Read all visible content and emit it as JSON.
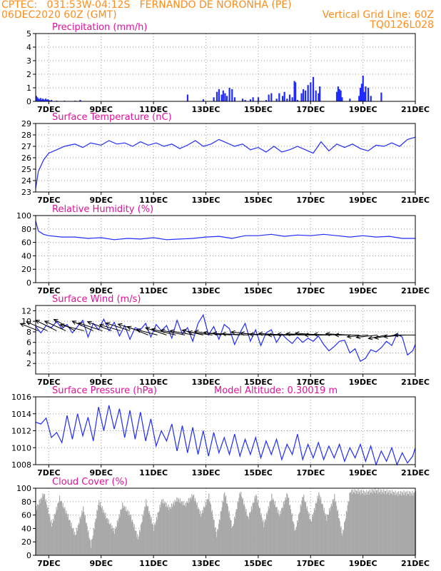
{
  "header": {
    "line1_left": "CPTEC:   031:53W-04:12S   FERNANDO DE NORONHA (PE)",
    "line2_left": "06DEC2020 60Z (GMT)",
    "line2_right": "Vertical Grid Line: 60Z",
    "line3_right": "TQ0126L028"
  },
  "colors": {
    "header": "#ff8c1a",
    "title": "#e0119a",
    "series": "#1f2bff",
    "cloud": "#a9a9a9",
    "grid": "#9a9a9a"
  },
  "chart_data": [
    {
      "type": "bar",
      "title": "Precipitation (mm/h)",
      "x_range_days": [
        6.5,
        21.0
      ],
      "ylim": [
        0,
        5
      ],
      "yticks": [
        "0",
        "1",
        "2",
        "3",
        "4",
        "5"
      ],
      "xticks": [
        "7DEC",
        "9DEC",
        "11DEC",
        "13DEC",
        "15DEC",
        "17DEC",
        "19DEC",
        "21DEC"
      ],
      "x": [
        6.52,
        6.56,
        6.6,
        6.64,
        6.68,
        6.72,
        6.76,
        6.8,
        6.84,
        6.88,
        6.92,
        6.96,
        7.0,
        7.05,
        7.1,
        7.3,
        7.6,
        8.0,
        8.2,
        12.3,
        12.9,
        13.3,
        13.42,
        13.5,
        13.6,
        13.66,
        13.73,
        13.8,
        13.9,
        14.0,
        14.1,
        14.4,
        14.5,
        14.7,
        14.8,
        15.0,
        15.3,
        15.4,
        15.5,
        15.7,
        15.8,
        15.93,
        16.0,
        16.1,
        16.2,
        16.3,
        16.38,
        16.42,
        16.5,
        16.65,
        16.72,
        16.8,
        16.9,
        17.0,
        17.1,
        17.2,
        17.3,
        17.35,
        18.0,
        18.05,
        18.1,
        18.15,
        18.2,
        18.5,
        18.85,
        18.9,
        18.95,
        19.0,
        19.05,
        19.1,
        19.2,
        19.3,
        19.7
      ],
      "values": [
        0.4,
        0.3,
        0.2,
        0.15,
        0.25,
        0.1,
        0.2,
        0.15,
        0.1,
        0.2,
        0.1,
        0.15,
        0.1,
        0.05,
        0.1,
        0.05,
        0.05,
        0.05,
        0.1,
        0.5,
        0.15,
        0.3,
        0.7,
        0.9,
        0.5,
        0.8,
        0.6,
        0.4,
        1.0,
        0.9,
        0.3,
        0.2,
        0.1,
        0.15,
        0.3,
        0.3,
        0.1,
        0.5,
        0.6,
        0.2,
        0.6,
        0.4,
        0.7,
        0.2,
        0.5,
        0.3,
        1.5,
        1.4,
        0.1,
        0.6,
        0.9,
        0.8,
        1.2,
        1.4,
        1.8,
        0.8,
        0.6,
        1.1,
        0.7,
        1.1,
        0.9,
        0.8,
        0.3,
        0.2,
        0.4,
        1.0,
        1.3,
        1.9,
        0.7,
        1.1,
        1.0,
        0.4,
        0.65
      ]
    },
    {
      "type": "line",
      "title": "Surface Temperature (nC)",
      "x_range_days": [
        6.5,
        21.0
      ],
      "ylim": [
        23,
        29
      ],
      "yticks": [
        "23",
        "24",
        "25",
        "26",
        "27",
        "28",
        "29"
      ],
      "xticks": [
        "7DEC",
        "9DEC",
        "11DEC",
        "13DEC",
        "15DEC",
        "17DEC",
        "19DEC",
        "21DEC"
      ],
      "x": [
        6.5,
        6.6,
        6.8,
        7.0,
        7.3,
        7.6,
        8.0,
        8.3,
        8.6,
        9.0,
        9.3,
        9.6,
        9.9,
        10.2,
        10.5,
        10.8,
        11.1,
        11.4,
        11.7,
        12.0,
        12.3,
        12.6,
        12.9,
        13.2,
        13.5,
        13.8,
        14.1,
        14.4,
        14.7,
        15.0,
        15.3,
        15.6,
        15.9,
        16.2,
        16.5,
        16.8,
        17.1,
        17.4,
        17.7,
        18.0,
        18.3,
        18.6,
        18.9,
        19.2,
        19.5,
        19.8,
        20.1,
        20.4,
        20.7,
        21.0
      ],
      "values": [
        23.3,
        24.8,
        25.8,
        26.4,
        26.7,
        27.0,
        27.2,
        26.9,
        27.3,
        27.1,
        27.5,
        27.2,
        27.3,
        27.0,
        27.4,
        27.1,
        27.3,
        27.0,
        27.2,
        26.8,
        27.1,
        27.5,
        27.0,
        27.2,
        27.6,
        27.3,
        27.0,
        27.2,
        26.7,
        26.9,
        26.5,
        27.0,
        26.5,
        26.7,
        27.0,
        26.7,
        26.4,
        27.4,
        26.6,
        27.2,
        26.9,
        27.2,
        26.8,
        26.6,
        27.1,
        27.0,
        27.3,
        27.0,
        27.6,
        27.8
      ]
    },
    {
      "type": "line",
      "title": "Relative Humidity (%)",
      "x_range_days": [
        6.5,
        21.0
      ],
      "ylim": [
        0,
        100
      ],
      "yticks": [
        "0",
        "20",
        "40",
        "60",
        "80",
        "100"
      ],
      "xticks": [
        "7DEC",
        "9DEC",
        "11DEC",
        "13DEC",
        "15DEC",
        "17DEC",
        "19DEC",
        "21DEC"
      ],
      "x": [
        6.5,
        6.6,
        6.8,
        7.0,
        7.5,
        8.0,
        8.5,
        9.0,
        9.5,
        10.0,
        10.5,
        11.0,
        11.5,
        12.0,
        12.5,
        13.0,
        13.5,
        14.0,
        14.5,
        15.0,
        15.5,
        16.0,
        16.5,
        17.0,
        17.5,
        18.0,
        18.5,
        19.0,
        19.5,
        20.0,
        20.5,
        21.0
      ],
      "values": [
        92,
        77,
        72,
        70,
        68,
        68,
        66,
        67,
        64,
        66,
        65,
        67,
        64,
        65,
        66,
        68,
        69,
        66,
        70,
        70,
        72,
        69,
        71,
        70,
        72,
        70,
        68,
        70,
        68,
        69,
        66,
        66
      ]
    },
    {
      "type": "line",
      "title": "Surface Wind (m/s)",
      "x_range_days": [
        6.5,
        21.0
      ],
      "ylim": [
        0,
        13
      ],
      "yticks": [
        "2",
        "4",
        "6",
        "8",
        "10",
        "12"
      ],
      "xticks": [
        "7DEC",
        "9DEC",
        "11DEC",
        "13DEC",
        "15DEC",
        "17DEC",
        "19DEC",
        "21DEC"
      ],
      "x": [
        6.5,
        6.7,
        6.9,
        7.1,
        7.3,
        7.5,
        7.7,
        7.9,
        8.1,
        8.3,
        8.5,
        8.7,
        8.9,
        9.1,
        9.3,
        9.5,
        9.7,
        9.9,
        10.1,
        10.3,
        10.5,
        10.7,
        10.9,
        11.1,
        11.3,
        11.5,
        11.7,
        11.9,
        12.1,
        12.3,
        12.5,
        12.7,
        12.9,
        13.1,
        13.3,
        13.5,
        13.7,
        13.9,
        14.1,
        14.3,
        14.5,
        14.7,
        14.9,
        15.1,
        15.3,
        15.5,
        15.7,
        15.9,
        16.1,
        16.3,
        16.5,
        16.7,
        16.9,
        17.1,
        17.3,
        17.5,
        17.7,
        17.9,
        18.1,
        18.3,
        18.5,
        18.7,
        18.9,
        19.1,
        19.3,
        19.5,
        19.7,
        19.9,
        20.1,
        20.3,
        20.5,
        20.7,
        20.9,
        21.0
      ],
      "values": [
        9.0,
        7.8,
        9.2,
        8.8,
        10.0,
        8.6,
        9.4,
        7.8,
        9.0,
        10.2,
        7.0,
        9.6,
        8.4,
        10.4,
        8.2,
        9.8,
        7.2,
        9.2,
        6.6,
        8.8,
        8.4,
        9.6,
        7.0,
        9.4,
        8.2,
        9.2,
        6.8,
        10.2,
        7.6,
        8.8,
        6.2,
        9.6,
        11.2,
        7.4,
        9.0,
        6.6,
        9.4,
        8.6,
        5.6,
        7.8,
        9.6,
        6.2,
        8.4,
        5.4,
        7.8,
        8.4,
        6.0,
        7.6,
        6.6,
        5.8,
        7.0,
        6.0,
        6.8,
        6.2,
        7.2,
        5.6,
        4.4,
        5.2,
        6.2,
        6.4,
        4.0,
        4.8,
        2.4,
        3.0,
        4.6,
        4.2,
        5.0,
        6.2,
        5.4,
        7.6,
        7.0,
        3.6,
        4.4,
        5.6
      ],
      "vectors_x": [
        6.6,
        6.95,
        7.3,
        7.65,
        8.0,
        8.35,
        8.7,
        9.05,
        9.4,
        9.75,
        10.1,
        10.45,
        10.8,
        11.15,
        11.5,
        11.85,
        12.2,
        12.55,
        12.9,
        13.25,
        13.6,
        13.95,
        14.3,
        14.65,
        15.0,
        15.35,
        15.7,
        16.05,
        16.4,
        16.75,
        17.1,
        17.45,
        17.8,
        18.15,
        18.5,
        18.85,
        19.2,
        19.55,
        19.9,
        20.25,
        20.6,
        21.0
      ],
      "vectors_u": [
        -6,
        -7,
        -7,
        -7,
        -7,
        -8,
        -7,
        -8,
        -8,
        -7,
        -8,
        -7,
        -7,
        -7,
        -7,
        -8,
        -8,
        -8,
        -7,
        -8,
        -9,
        -9,
        -9,
        -9,
        -9,
        -9,
        -9,
        -9,
        -9,
        -9,
        -9,
        -9,
        -9,
        -9,
        -8,
        -8,
        -7,
        -7,
        -6,
        -7,
        -7,
        -7
      ],
      "vectors_v": [
        2.4,
        3.0,
        3.5,
        3.2,
        3.8,
        2.0,
        3.2,
        2.6,
        3.0,
        2.0,
        2.6,
        2.2,
        2.8,
        1.8,
        2.4,
        2.0,
        1.6,
        1.4,
        1.6,
        1.0,
        1.2,
        0.8,
        0.6,
        0.4,
        1.0,
        0.6,
        0.2,
        0.5,
        0.0,
        0.2,
        0.4,
        0.6,
        0.0,
        0.2,
        0.4,
        0.0,
        -0.6,
        -0.8,
        -1.2,
        -1.0,
        -0.6,
        0.0
      ]
    },
    {
      "type": "line",
      "title": "Surface Pressure (hPa)",
      "annotation": "Model Altitude: 0.30019 m",
      "x_range_days": [
        6.5,
        21.0
      ],
      "ylim": [
        1008,
        1016
      ],
      "yticks": [
        "1008",
        "1010",
        "1012",
        "1014",
        "1016"
      ],
      "xticks": [
        "7DEC",
        "9DEC",
        "11DEC",
        "13DEC",
        "15DEC",
        "17DEC",
        "19DEC",
        "21DEC"
      ],
      "x": [
        6.5,
        6.7,
        6.9,
        7.1,
        7.3,
        7.5,
        7.7,
        7.9,
        8.1,
        8.3,
        8.5,
        8.7,
        8.9,
        9.1,
        9.3,
        9.5,
        9.7,
        9.9,
        10.1,
        10.3,
        10.5,
        10.7,
        10.9,
        11.1,
        11.3,
        11.5,
        11.7,
        11.9,
        12.1,
        12.3,
        12.5,
        12.7,
        12.9,
        13.1,
        13.3,
        13.5,
        13.7,
        13.9,
        14.1,
        14.3,
        14.5,
        14.7,
        14.9,
        15.1,
        15.3,
        15.5,
        15.7,
        15.9,
        16.1,
        16.3,
        16.5,
        16.7,
        16.9,
        17.1,
        17.3,
        17.5,
        17.7,
        17.9,
        18.1,
        18.3,
        18.5,
        18.7,
        18.9,
        19.1,
        19.3,
        19.5,
        19.7,
        19.9,
        20.1,
        20.3,
        20.5,
        20.7,
        20.9,
        21.0
      ],
      "values": [
        1013.0,
        1012.8,
        1013.5,
        1011.2,
        1011.8,
        1010.6,
        1013.8,
        1011.0,
        1014.0,
        1011.4,
        1013.6,
        1010.8,
        1014.8,
        1012.0,
        1015.0,
        1012.2,
        1014.6,
        1011.2,
        1014.4,
        1011.0,
        1014.2,
        1010.8,
        1013.4,
        1010.2,
        1012.0,
        1010.8,
        1012.8,
        1009.6,
        1012.6,
        1009.4,
        1012.4,
        1009.2,
        1012.0,
        1009.0,
        1011.8,
        1009.4,
        1011.2,
        1009.2,
        1011.6,
        1009.0,
        1011.0,
        1009.2,
        1011.2,
        1008.8,
        1010.8,
        1009.2,
        1011.0,
        1008.6,
        1010.4,
        1009.2,
        1011.6,
        1008.6,
        1010.4,
        1008.8,
        1010.6,
        1008.6,
        1010.2,
        1008.8,
        1010.4,
        1008.4,
        1010.0,
        1008.8,
        1010.4,
        1008.4,
        1010.2,
        1008.0,
        1009.6,
        1008.4,
        1010.0,
        1008.0,
        1009.4,
        1008.2,
        1009.0,
        1010.0
      ]
    },
    {
      "type": "area",
      "title": "Cloud Cover (%)",
      "x_range_days": [
        6.5,
        21.0
      ],
      "ylim": [
        0,
        100
      ],
      "yticks": [
        "0",
        "20",
        "40",
        "60",
        "80",
        "100"
      ],
      "xticks": [
        "7DEC",
        "9DEC",
        "11DEC",
        "13DEC",
        "15DEC",
        "17DEC",
        "19DEC",
        "21DEC"
      ],
      "x": [
        6.5,
        6.8,
        7.1,
        7.4,
        7.7,
        8.0,
        8.3,
        8.6,
        8.9,
        9.2,
        9.5,
        9.8,
        10.1,
        10.4,
        10.7,
        11.0,
        11.3,
        11.6,
        11.9,
        12.2,
        12.5,
        12.8,
        13.1,
        13.4,
        13.7,
        14.0,
        14.3,
        14.6,
        14.9,
        15.2,
        15.5,
        15.8,
        16.1,
        16.4,
        16.7,
        17.0,
        17.3,
        17.6,
        17.9,
        18.2,
        18.5,
        18.8,
        19.1,
        19.4,
        19.7,
        20.0,
        20.3,
        20.6,
        20.9,
        21.0
      ],
      "values": [
        70,
        92,
        45,
        85,
        60,
        30,
        70,
        15,
        80,
        55,
        35,
        75,
        60,
        25,
        80,
        40,
        82,
        70,
        84,
        75,
        90,
        60,
        88,
        30,
        94,
        40,
        95,
        55,
        90,
        45,
        88,
        60,
        92,
        35,
        90,
        50,
        92,
        55,
        88,
        30,
        95,
        95,
        93,
        96,
        95,
        94,
        92,
        93,
        92,
        92
      ]
    }
  ]
}
